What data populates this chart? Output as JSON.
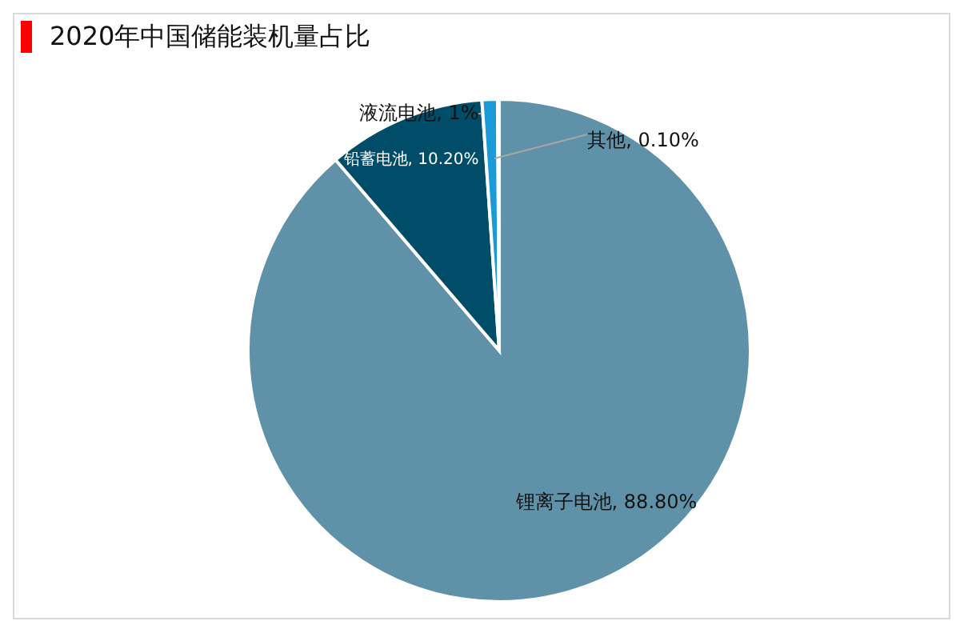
{
  "chart_data": {
    "type": "pie",
    "title": "2020年中国储能装机量占比",
    "categories": [
      "锂离子电池",
      "铅蓄电池",
      "液流电池",
      "其他"
    ],
    "values": [
      88.8,
      10.2,
      1,
      0.1
    ],
    "value_labels": [
      "88.80%",
      "10.20%",
      "1%",
      "0.10%"
    ],
    "colors": [
      "#5f92a8",
      "#004d6a",
      "#1a9ad6",
      "#a0a0a0"
    ]
  }
}
